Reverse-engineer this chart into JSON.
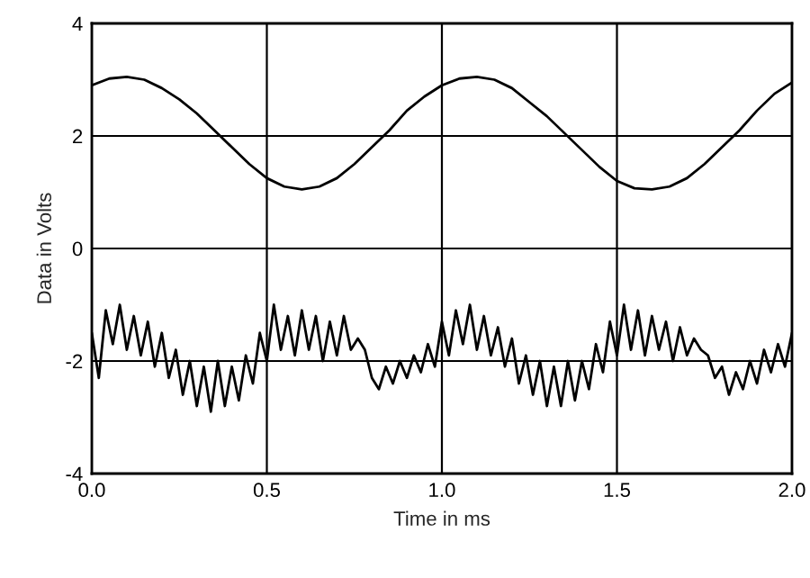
{
  "chart_data": {
    "type": "line",
    "xlabel": "Time in ms",
    "ylabel": "Data in Volts",
    "xlim": [
      0,
      2
    ],
    "ylim": [
      -4,
      4
    ],
    "xticks": [
      {
        "value": 0,
        "label": "0.0"
      },
      {
        "value": 0.5,
        "label": "0.5"
      },
      {
        "value": 1,
        "label": "1.0"
      },
      {
        "value": 1.5,
        "label": "1.5"
      },
      {
        "value": 2,
        "label": "2.0"
      }
    ],
    "yticks": [
      -4,
      -2,
      0,
      2,
      4
    ],
    "grid": true,
    "marker": "none",
    "line_style": "solid",
    "series": [
      {
        "color": "#000000",
        "x": [
          0,
          0.05,
          0.1,
          0.15,
          0.2,
          0.25,
          0.3,
          0.35,
          0.4,
          0.45,
          0.5,
          0.55,
          0.6,
          0.65,
          0.7,
          0.75,
          0.8,
          0.85,
          0.9,
          0.95,
          1.0,
          1.05,
          1.1,
          1.15,
          1.2,
          1.25,
          1.3,
          1.35,
          1.4,
          1.45,
          1.5,
          1.55,
          1.6,
          1.65,
          1.7,
          1.75,
          1.8,
          1.85,
          1.9,
          1.95,
          2.0
        ],
        "values": [
          2.9,
          3.02,
          3.05,
          3.0,
          2.85,
          2.65,
          2.4,
          2.1,
          1.8,
          1.5,
          1.25,
          1.1,
          1.05,
          1.1,
          1.25,
          1.5,
          1.8,
          2.1,
          2.45,
          2.7,
          2.9,
          3.02,
          3.05,
          3.0,
          2.85,
          2.6,
          2.35,
          2.05,
          1.75,
          1.45,
          1.2,
          1.07,
          1.05,
          1.1,
          1.25,
          1.5,
          1.8,
          2.1,
          2.45,
          2.75,
          2.95
        ]
      },
      {
        "color": "#000000",
        "x": [
          0,
          0.02,
          0.04,
          0.06,
          0.08,
          0.1,
          0.12,
          0.14,
          0.16,
          0.18,
          0.2,
          0.22,
          0.24,
          0.26,
          0.28,
          0.3,
          0.32,
          0.34,
          0.36,
          0.38,
          0.4,
          0.42,
          0.44,
          0.46,
          0.48,
          0.5,
          0.52,
          0.54,
          0.56,
          0.58,
          0.6,
          0.62,
          0.64,
          0.66,
          0.68,
          0.7,
          0.72,
          0.74,
          0.76,
          0.78,
          0.8,
          0.82,
          0.84,
          0.86,
          0.88,
          0.9,
          0.92,
          0.94,
          0.96,
          0.98,
          1.0,
          1.02,
          1.04,
          1.06,
          1.08,
          1.1,
          1.12,
          1.14,
          1.16,
          1.18,
          1.2,
          1.22,
          1.24,
          1.26,
          1.28,
          1.3,
          1.32,
          1.34,
          1.36,
          1.38,
          1.4,
          1.42,
          1.44,
          1.46,
          1.48,
          1.5,
          1.52,
          1.54,
          1.56,
          1.58,
          1.6,
          1.62,
          1.64,
          1.66,
          1.68,
          1.7,
          1.72,
          1.74,
          1.76,
          1.78,
          1.8,
          1.82,
          1.84,
          1.86,
          1.88,
          1.9,
          1.92,
          1.94,
          1.96,
          1.98,
          2.0
        ],
        "values": [
          -1.5,
          -2.3,
          -1.1,
          -1.7,
          -1.0,
          -1.8,
          -1.2,
          -1.9,
          -1.3,
          -2.1,
          -1.5,
          -2.3,
          -1.8,
          -2.6,
          -2.0,
          -2.8,
          -2.1,
          -2.9,
          -2.0,
          -2.8,
          -2.1,
          -2.7,
          -1.9,
          -2.4,
          -1.5,
          -2.0,
          -1.0,
          -1.8,
          -1.2,
          -1.9,
          -1.1,
          -1.8,
          -1.2,
          -2.0,
          -1.3,
          -1.9,
          -1.2,
          -1.8,
          -1.6,
          -1.8,
          -2.3,
          -2.5,
          -2.1,
          -2.4,
          -2.0,
          -2.3,
          -1.9,
          -2.2,
          -1.7,
          -2.1,
          -1.3,
          -1.9,
          -1.1,
          -1.7,
          -1.0,
          -1.8,
          -1.2,
          -1.9,
          -1.4,
          -2.1,
          -1.6,
          -2.4,
          -1.9,
          -2.6,
          -2.0,
          -2.8,
          -2.1,
          -2.8,
          -2.0,
          -2.7,
          -2.0,
          -2.5,
          -1.7,
          -2.2,
          -1.3,
          -1.9,
          -1.0,
          -1.8,
          -1.1,
          -1.9,
          -1.2,
          -1.8,
          -1.3,
          -2.0,
          -1.4,
          -1.9,
          -1.6,
          -1.8,
          -1.9,
          -2.3,
          -2.1,
          -2.6,
          -2.2,
          -2.5,
          -2.0,
          -2.4,
          -1.8,
          -2.2,
          -1.7,
          -2.1,
          -1.5
        ]
      }
    ]
  }
}
